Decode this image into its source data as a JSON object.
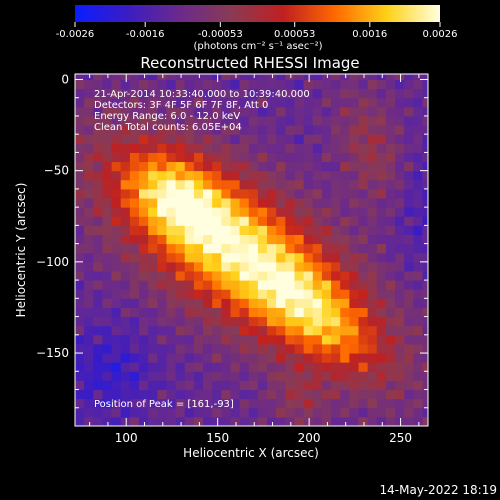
{
  "chart_data": {
    "type": "heatmap",
    "title": "Reconstructed RHESSI Image",
    "xlabel": "Heliocentric X (arcsec)",
    "ylabel": "Heliocentric Y (arcsec)",
    "xlim": [
      72,
      265
    ],
    "ylim": [
      -190,
      3
    ],
    "x_ticks": [
      100,
      150,
      200,
      250
    ],
    "y_ticks": [
      0,
      -50,
      -100,
      -150
    ],
    "colorbar": {
      "min": -0.0026,
      "max": 0.0026,
      "ticks": [
        "-0.0026",
        "-0.0016",
        "-0.00053",
        "0.00053",
        "0.0016",
        "0.0026"
      ],
      "units": "(photons cm⁻² s⁻¹ asec⁻²)",
      "stops": [
        "#0a1dff",
        "#3b1cc4",
        "#6a2a8c",
        "#8a3a55",
        "#c02020",
        "#ff6a00",
        "#ffd21a",
        "#ffffe0"
      ]
    },
    "annotations": [
      "21-Apr-2014 10:33:40.000 to 10:39:40.000",
      "Detectors: 3F 4F 5F 6F 7F 8F, Att 0",
      "Energy Range: 6.0 - 12.0 keV",
      "Clean     Total counts: 6.05E+04"
    ],
    "peak": {
      "label": "Position of Peak = [161,-93]",
      "x": 161,
      "y": -93
    },
    "footer": "14-May-2022 18:19"
  }
}
